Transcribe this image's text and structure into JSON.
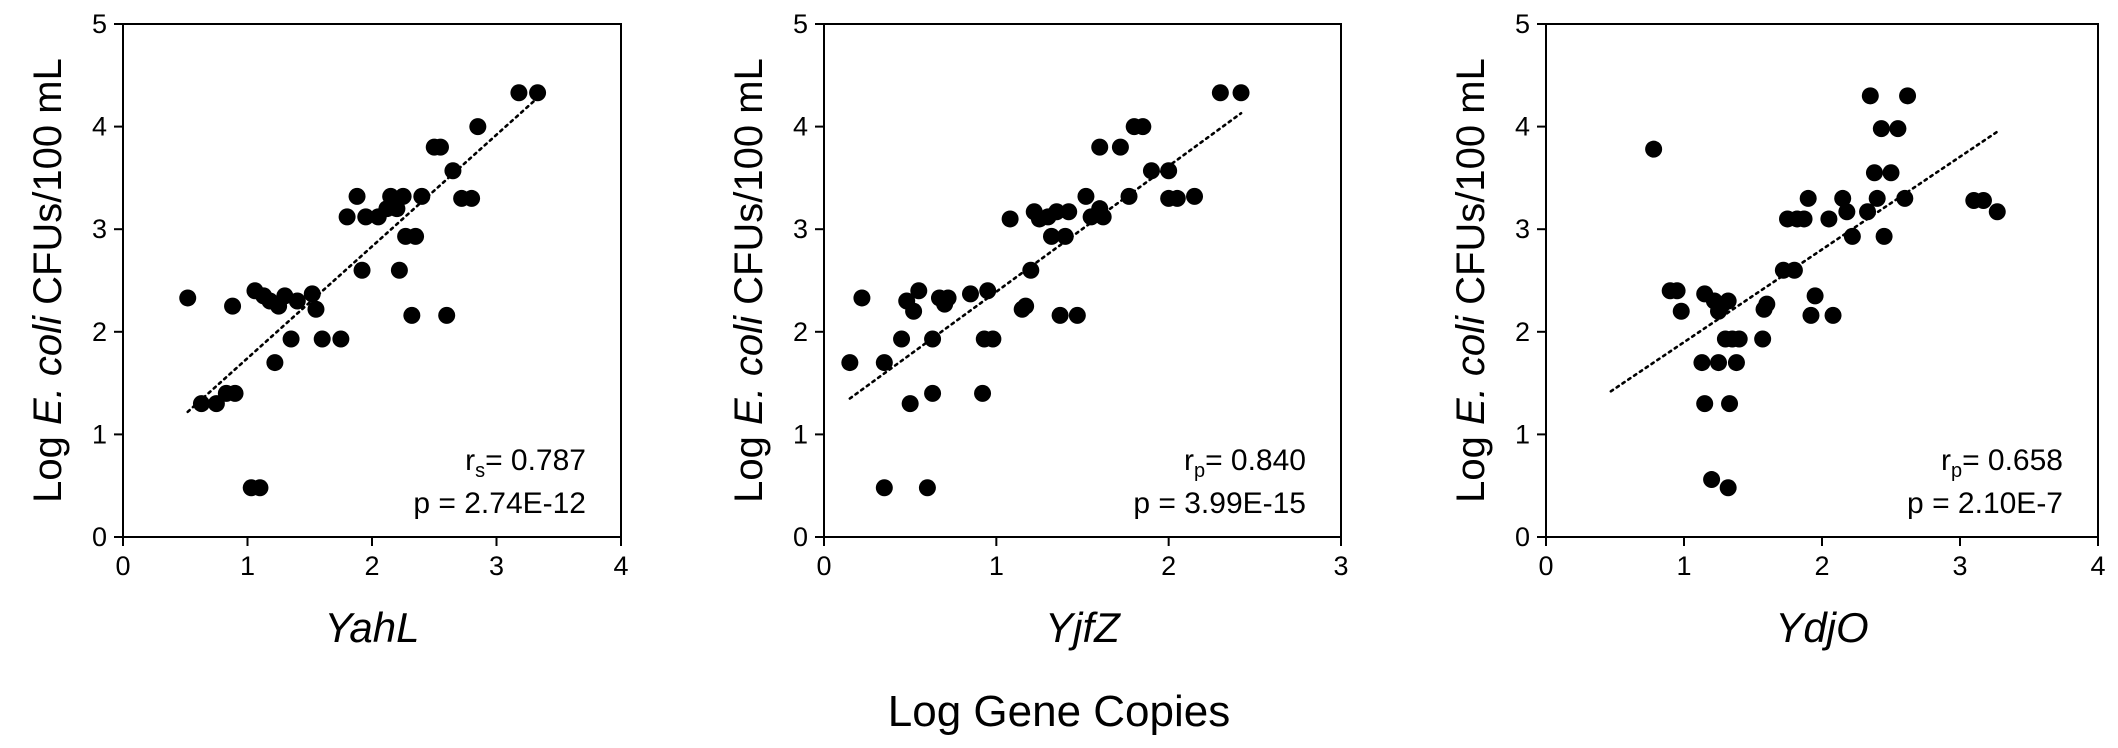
{
  "figure": {
    "common_xlabel": "Log Gene Copies"
  },
  "chart_data": [
    {
      "type": "scatter",
      "title": "",
      "xlabel": "YahL",
      "ylabel": {
        "prefix": "Log ",
        "italic": "E. coli",
        "suffix": " CFUs/100 mL"
      },
      "xlim": [
        0,
        4
      ],
      "ylim": [
        0,
        5
      ],
      "xticks": [
        0,
        1,
        2,
        3,
        4
      ],
      "yticks": [
        0,
        1,
        2,
        3,
        4,
        5
      ],
      "grid": false,
      "stats": {
        "r_symbol": "r",
        "r_sub": "s",
        "r_value": "= 0.787",
        "p_text": "p = 2.74E-12"
      },
      "trendline": {
        "style": "dotted",
        "x": [
          0.52,
          3.33
        ],
        "y": [
          1.22,
          4.28
        ]
      },
      "points": [
        {
          "x": 0.52,
          "y": 2.33
        },
        {
          "x": 0.63,
          "y": 1.3
        },
        {
          "x": 0.75,
          "y": 1.3
        },
        {
          "x": 0.83,
          "y": 1.4
        },
        {
          "x": 0.9,
          "y": 1.4
        },
        {
          "x": 0.88,
          "y": 2.25
        },
        {
          "x": 1.03,
          "y": 0.48
        },
        {
          "x": 1.1,
          "y": 0.48
        },
        {
          "x": 1.06,
          "y": 2.4
        },
        {
          "x": 1.13,
          "y": 2.35
        },
        {
          "x": 1.18,
          "y": 2.3
        },
        {
          "x": 1.22,
          "y": 1.7
        },
        {
          "x": 1.25,
          "y": 2.25
        },
        {
          "x": 1.3,
          "y": 2.35
        },
        {
          "x": 1.35,
          "y": 1.93
        },
        {
          "x": 1.4,
          "y": 2.3
        },
        {
          "x": 1.52,
          "y": 2.37
        },
        {
          "x": 1.55,
          "y": 2.22
        },
        {
          "x": 1.6,
          "y": 1.93
        },
        {
          "x": 1.75,
          "y": 1.93
        },
        {
          "x": 1.8,
          "y": 3.12
        },
        {
          "x": 1.88,
          "y": 3.32
        },
        {
          "x": 1.92,
          "y": 2.6
        },
        {
          "x": 1.95,
          "y": 3.12
        },
        {
          "x": 2.05,
          "y": 3.12
        },
        {
          "x": 2.12,
          "y": 3.2
        },
        {
          "x": 2.15,
          "y": 3.32
        },
        {
          "x": 2.2,
          "y": 3.2
        },
        {
          "x": 2.22,
          "y": 2.6
        },
        {
          "x": 2.25,
          "y": 3.32
        },
        {
          "x": 2.27,
          "y": 2.93
        },
        {
          "x": 2.32,
          "y": 2.16
        },
        {
          "x": 2.35,
          "y": 2.93
        },
        {
          "x": 2.4,
          "y": 3.32
        },
        {
          "x": 2.5,
          "y": 3.8
        },
        {
          "x": 2.55,
          "y": 3.8
        },
        {
          "x": 2.6,
          "y": 2.16
        },
        {
          "x": 2.65,
          "y": 3.57
        },
        {
          "x": 2.72,
          "y": 3.3
        },
        {
          "x": 2.8,
          "y": 3.3
        },
        {
          "x": 2.85,
          "y": 4.0
        },
        {
          "x": 3.18,
          "y": 4.33
        },
        {
          "x": 3.33,
          "y": 4.33
        }
      ]
    },
    {
      "type": "scatter",
      "title": "",
      "xlabel": "YjfZ",
      "ylabel": {
        "prefix": "Log ",
        "italic": "E. coli",
        "suffix": " CFUs/100 mL"
      },
      "xlim": [
        0,
        3
      ],
      "ylim": [
        0,
        5
      ],
      "xticks": [
        0,
        1,
        2,
        3
      ],
      "yticks": [
        0,
        1,
        2,
        3,
        4,
        5
      ],
      "grid": false,
      "stats": {
        "r_symbol": "r",
        "r_sub": "p",
        "r_value": "= 0.840",
        "p_text": "p = 3.99E-15"
      },
      "trendline": {
        "style": "dotted",
        "x": [
          0.15,
          2.42
        ],
        "y": [
          1.35,
          4.13
        ]
      },
      "points": [
        {
          "x": 0.15,
          "y": 1.7
        },
        {
          "x": 0.22,
          "y": 2.33
        },
        {
          "x": 0.35,
          "y": 0.48
        },
        {
          "x": 0.35,
          "y": 1.7
        },
        {
          "x": 0.45,
          "y": 1.93
        },
        {
          "x": 0.48,
          "y": 2.3
        },
        {
          "x": 0.5,
          "y": 1.3
        },
        {
          "x": 0.52,
          "y": 2.2
        },
        {
          "x": 0.55,
          "y": 2.4
        },
        {
          "x": 0.6,
          "y": 0.48
        },
        {
          "x": 0.63,
          "y": 1.4
        },
        {
          "x": 0.63,
          "y": 1.93
        },
        {
          "x": 0.67,
          "y": 2.33
        },
        {
          "x": 0.7,
          "y": 2.27
        },
        {
          "x": 0.72,
          "y": 2.33
        },
        {
          "x": 0.85,
          "y": 2.37
        },
        {
          "x": 0.92,
          "y": 1.4
        },
        {
          "x": 0.93,
          "y": 1.93
        },
        {
          "x": 0.95,
          "y": 2.4
        },
        {
          "x": 0.98,
          "y": 1.93
        },
        {
          "x": 1.08,
          "y": 3.1
        },
        {
          "x": 1.15,
          "y": 2.22
        },
        {
          "x": 1.17,
          "y": 2.25
        },
        {
          "x": 1.2,
          "y": 2.6
        },
        {
          "x": 1.22,
          "y": 3.17
        },
        {
          "x": 1.25,
          "y": 3.1
        },
        {
          "x": 1.3,
          "y": 3.12
        },
        {
          "x": 1.32,
          "y": 2.93
        },
        {
          "x": 1.35,
          "y": 3.17
        },
        {
          "x": 1.37,
          "y": 2.16
        },
        {
          "x": 1.4,
          "y": 2.93
        },
        {
          "x": 1.42,
          "y": 3.17
        },
        {
          "x": 1.47,
          "y": 2.16
        },
        {
          "x": 1.52,
          "y": 3.32
        },
        {
          "x": 1.55,
          "y": 3.12
        },
        {
          "x": 1.6,
          "y": 3.2
        },
        {
          "x": 1.6,
          "y": 3.8
        },
        {
          "x": 1.62,
          "y": 3.12
        },
        {
          "x": 1.72,
          "y": 3.8
        },
        {
          "x": 1.77,
          "y": 3.32
        },
        {
          "x": 1.8,
          "y": 4.0
        },
        {
          "x": 1.85,
          "y": 4.0
        },
        {
          "x": 1.9,
          "y": 3.57
        },
        {
          "x": 2.0,
          "y": 3.57
        },
        {
          "x": 2.0,
          "y": 3.3
        },
        {
          "x": 2.05,
          "y": 3.3
        },
        {
          "x": 2.15,
          "y": 3.32
        },
        {
          "x": 2.3,
          "y": 4.33
        },
        {
          "x": 2.42,
          "y": 4.33
        }
      ]
    },
    {
      "type": "scatter",
      "title": "",
      "xlabel": "YdjO",
      "ylabel": {
        "prefix": "Log ",
        "italic": "E. coli",
        "suffix": " CFUs/100 mL"
      },
      "xlim": [
        0,
        4
      ],
      "ylim": [
        0,
        5
      ],
      "xticks": [
        0,
        1,
        2,
        3,
        4
      ],
      "yticks": [
        0,
        1,
        2,
        3,
        4,
        5
      ],
      "grid": false,
      "stats": {
        "r_symbol": "r",
        "r_sub": "p",
        "r_value": "= 0.658",
        "p_text": "p = 2.10E-7"
      },
      "trendline": {
        "style": "dotted",
        "x": [
          0.47,
          3.27
        ],
        "y": [
          1.42,
          3.95
        ]
      },
      "points": [
        {
          "x": 0.78,
          "y": 3.78
        },
        {
          "x": 0.9,
          "y": 2.4
        },
        {
          "x": 0.95,
          "y": 2.4
        },
        {
          "x": 0.98,
          "y": 2.2
        },
        {
          "x": 1.13,
          "y": 1.7
        },
        {
          "x": 1.15,
          "y": 1.3
        },
        {
          "x": 1.15,
          "y": 2.37
        },
        {
          "x": 1.2,
          "y": 0.56
        },
        {
          "x": 1.22,
          "y": 2.3
        },
        {
          "x": 1.25,
          "y": 2.2
        },
        {
          "x": 1.25,
          "y": 1.7
        },
        {
          "x": 1.27,
          "y": 2.25
        },
        {
          "x": 1.3,
          "y": 1.93
        },
        {
          "x": 1.32,
          "y": 2.3
        },
        {
          "x": 1.32,
          "y": 0.48
        },
        {
          "x": 1.33,
          "y": 1.3
        },
        {
          "x": 1.35,
          "y": 1.93
        },
        {
          "x": 1.38,
          "y": 1.7
        },
        {
          "x": 1.4,
          "y": 1.93
        },
        {
          "x": 1.57,
          "y": 1.93
        },
        {
          "x": 1.58,
          "y": 2.22
        },
        {
          "x": 1.6,
          "y": 2.27
        },
        {
          "x": 1.72,
          "y": 2.6
        },
        {
          "x": 1.75,
          "y": 3.1
        },
        {
          "x": 1.8,
          "y": 2.6
        },
        {
          "x": 1.82,
          "y": 3.1
        },
        {
          "x": 1.87,
          "y": 3.1
        },
        {
          "x": 1.9,
          "y": 3.3
        },
        {
          "x": 1.92,
          "y": 2.16
        },
        {
          "x": 1.95,
          "y": 2.35
        },
        {
          "x": 2.05,
          "y": 3.1
        },
        {
          "x": 2.08,
          "y": 2.16
        },
        {
          "x": 2.15,
          "y": 3.3
        },
        {
          "x": 2.18,
          "y": 3.17
        },
        {
          "x": 2.22,
          "y": 2.93
        },
        {
          "x": 2.33,
          "y": 3.17
        },
        {
          "x": 2.35,
          "y": 4.3
        },
        {
          "x": 2.38,
          "y": 3.55
        },
        {
          "x": 2.4,
          "y": 3.3
        },
        {
          "x": 2.43,
          "y": 3.98
        },
        {
          "x": 2.45,
          "y": 2.93
        },
        {
          "x": 2.5,
          "y": 3.55
        },
        {
          "x": 2.55,
          "y": 3.98
        },
        {
          "x": 2.6,
          "y": 3.3
        },
        {
          "x": 2.62,
          "y": 4.3
        },
        {
          "x": 3.1,
          "y": 3.28
        },
        {
          "x": 3.17,
          "y": 3.28
        },
        {
          "x": 3.27,
          "y": 3.17
        }
      ]
    }
  ]
}
